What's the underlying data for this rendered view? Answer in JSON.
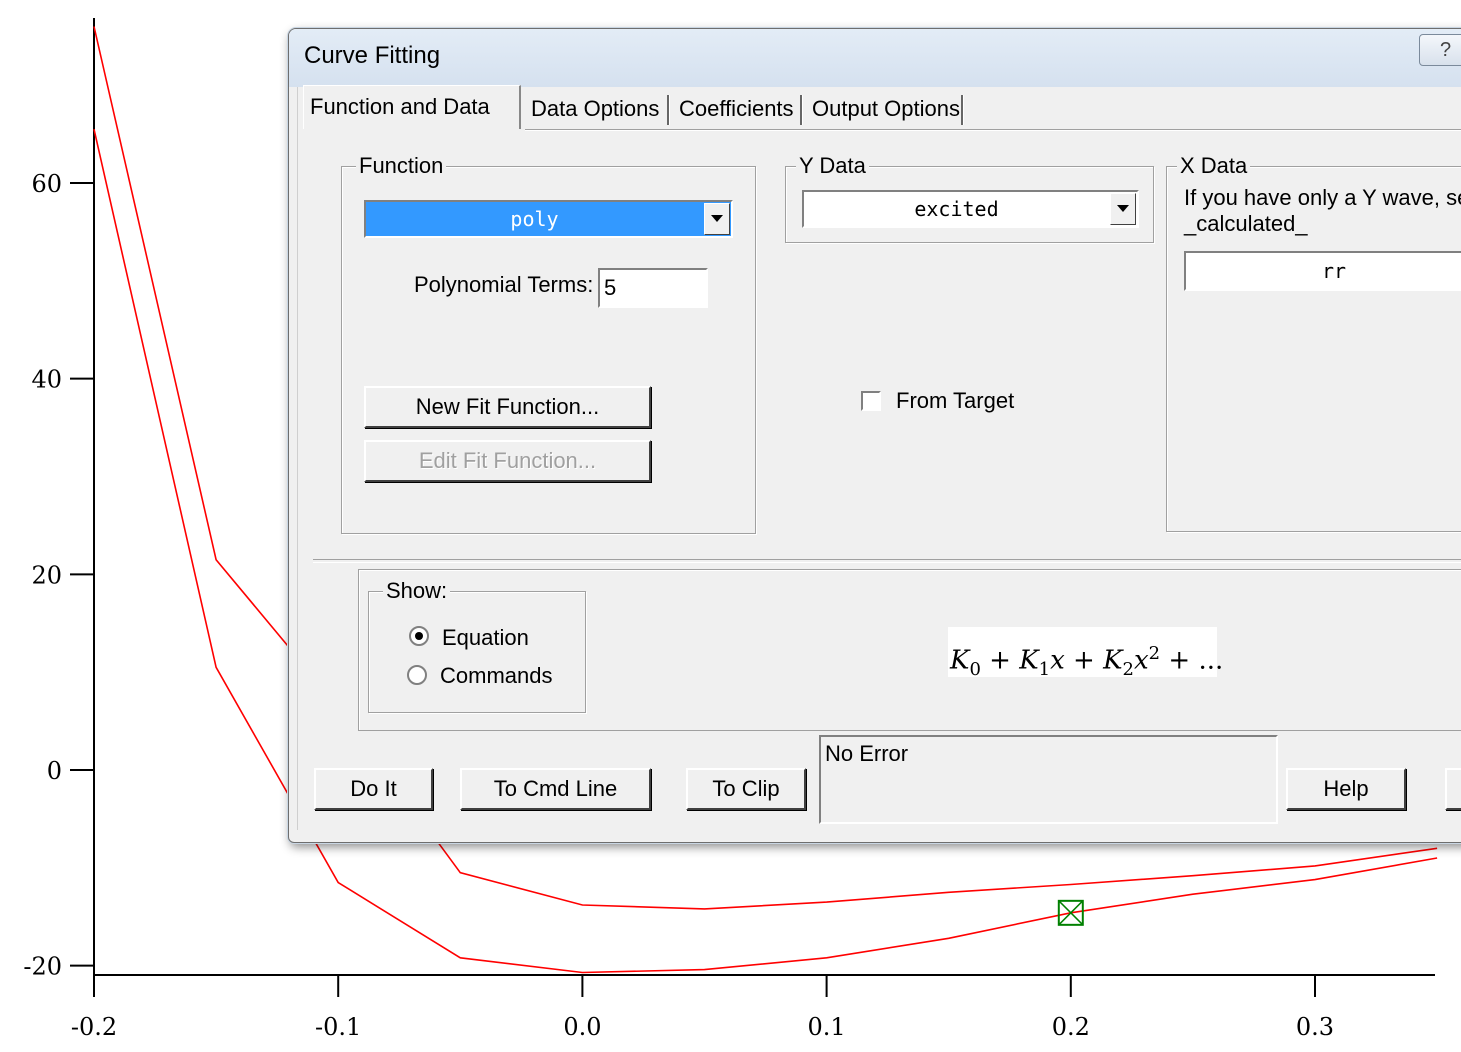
{
  "chart_data": {
    "type": "line",
    "xlim": [
      -0.2,
      0.35
    ],
    "ylim": [
      -20,
      75
    ],
    "xticks": [
      "-0.2",
      "-0.1",
      "0.0",
      "0.1",
      "0.2",
      "0.3"
    ],
    "xtick_values": [
      -0.2,
      -0.1,
      0.0,
      0.1,
      0.2,
      0.3
    ],
    "yticks": [
      "-20",
      "0",
      "20",
      "40",
      "60"
    ],
    "ytick_values": [
      -20,
      0,
      20,
      40,
      60
    ],
    "series": [
      {
        "color": "#ff0000",
        "x": [
          -0.2,
          -0.15,
          -0.1,
          -0.05,
          0.0,
          0.05,
          0.1,
          0.15,
          0.2,
          0.25,
          0.3,
          0.35
        ],
        "y": [
          76,
          21.5,
          6.5,
          -10.5,
          -13.8,
          -14.2,
          -13.5,
          -12.5,
          -11.7,
          -10.8,
          -9.8,
          -8.0
        ]
      },
      {
        "color": "#ff0000",
        "x": [
          -0.2,
          -0.15,
          -0.1,
          -0.05,
          0.0,
          0.05,
          0.1,
          0.15,
          0.2,
          0.25,
          0.3,
          0.35
        ],
        "y": [
          65.5,
          10.5,
          -11.5,
          -19.2,
          -20.7,
          -20.4,
          -19.2,
          -17.2,
          -14.6,
          -12.7,
          -11.2,
          -9.0
        ]
      }
    ],
    "marker": {
      "x": 0.2,
      "y": -14.6,
      "color": "#008000"
    },
    "grid": false
  },
  "dialog": {
    "title": "Curve Fitting",
    "help_icon": "?",
    "tabs": [
      {
        "label": "Function and Data"
      },
      {
        "label": "Data Options"
      },
      {
        "label": "Coefficients"
      },
      {
        "label": "Output Options"
      }
    ],
    "function_group": {
      "label": "Function",
      "selected": "poly",
      "poly_terms_label": "Polynomial Terms:",
      "poly_terms_value": "5",
      "new_fit_button": "New Fit Function...",
      "edit_fit_button": "Edit Fit Function..."
    },
    "ydata_group": {
      "label": "Y Data",
      "selected": "excited",
      "from_target_label": "From Target"
    },
    "xdata_group": {
      "label": "X Data",
      "hint_line1": "If you have only a Y wave, se",
      "hint_line2": "_calculated_",
      "selected": "rr"
    },
    "show_group": {
      "label": "Show:",
      "option_equation": "Equation",
      "option_commands": "Commands"
    },
    "equation": {
      "k0": "K",
      "s0": "0",
      "plus1": " + ",
      "k1": "K",
      "s1": "1",
      "x1": "x",
      "plus2": " + ",
      "k2": "K",
      "s2": "2",
      "x2": "x",
      "sup2": "2",
      "tail": " + ..."
    },
    "buttons": {
      "do_it": "Do It",
      "to_cmd_line": "To Cmd Line",
      "to_clip": "To Clip",
      "help": "Help"
    },
    "status": "No Error"
  }
}
